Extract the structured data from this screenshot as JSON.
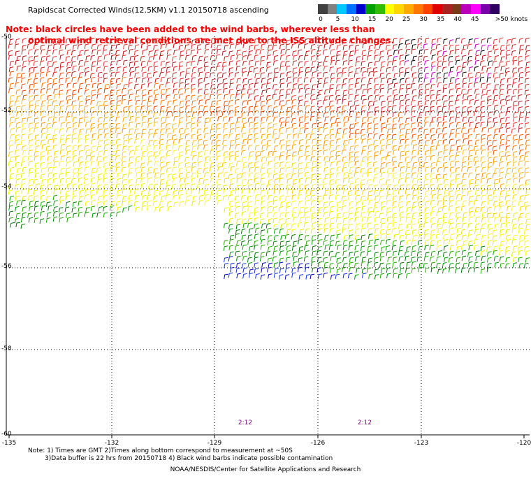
{
  "title": "Rapidscat Corrected Winds(12.5KM) v1.1 20150718 ascending",
  "note": {
    "line1": "Note: black circles have been added to the wind barbs, wherever less than",
    "line2": "optimal wind retrieval conditions are met due to the ISS altitude changes."
  },
  "legend": {
    "unit": ">50 knots",
    "labels": [
      "0",
      "5",
      "10",
      "15",
      "20",
      "25",
      "30",
      "35",
      "40",
      "45"
    ],
    "colors": [
      "#404040",
      "#808080",
      "#00c8ff",
      "#0070ff",
      "#0000cc",
      "#00a000",
      "#33bb00",
      "#ffff00",
      "#ffd700",
      "#ffaa00",
      "#ff7700",
      "#ff4400",
      "#e00000",
      "#aa2222",
      "#7a3a1a",
      "#bb00bb",
      "#ff00ff",
      "#7700aa",
      "#300060"
    ]
  },
  "axes": {
    "lat_labels": [
      "-50",
      "-52",
      "-54",
      "-56",
      "-58",
      "-60"
    ],
    "lon_labels": [
      "-135",
      "-132",
      "-129",
      "-126",
      "-123",
      "-120"
    ]
  },
  "time_labels": [
    "2:12",
    "2:12"
  ],
  "footnote": {
    "line1": "Note: 1) Times are GMT 2)Times along bottom correspond to measurement at ~50S",
    "line2": "3)Data buffer is 22 hrs from 20150718 4) Black wind barbs indicate possible contamination"
  },
  "credit": "NOAA/NESDIS/Center for Satellite Applications and Research"
}
